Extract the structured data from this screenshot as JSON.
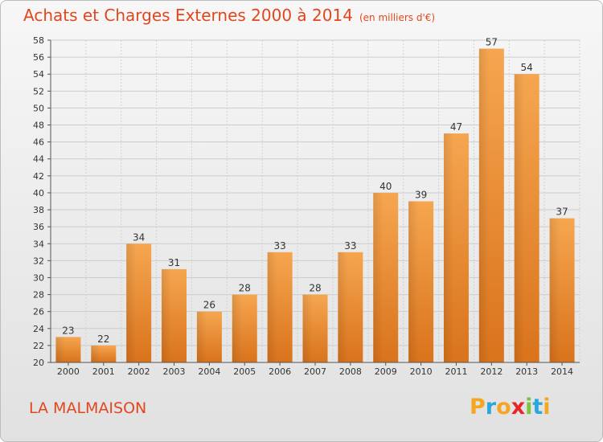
{
  "title": "Achats et Charges Externes 2000 à 2014",
  "unit_note": "(en milliers d'€)",
  "place_name": "LA MALMAISON",
  "logo": {
    "letters": [
      "P",
      "r",
      "o",
      "x",
      "i",
      "t",
      "i"
    ],
    "colors": [
      "#f5a623",
      "#2aa7dd",
      "#f5a623",
      "#e8262a",
      "#7cc243",
      "#2aa7dd",
      "#f5a623"
    ]
  },
  "colors": {
    "bar": "#f29a3f",
    "bar_dark": "#d9731c",
    "title": "#e0471f",
    "grid": "#c8c8c8"
  },
  "chart_data": {
    "type": "bar",
    "categories": [
      "2000",
      "2001",
      "2002",
      "2003",
      "2004",
      "2005",
      "2006",
      "2007",
      "2008",
      "2009",
      "2010",
      "2011",
      "2012",
      "2013",
      "2014"
    ],
    "values": [
      23,
      22,
      34,
      31,
      26,
      28,
      33,
      28,
      33,
      40,
      39,
      47,
      57,
      54,
      37
    ],
    "ylim": [
      20,
      58
    ],
    "yticks": [
      20,
      22,
      24,
      26,
      28,
      30,
      32,
      34,
      36,
      38,
      40,
      42,
      44,
      46,
      48,
      50,
      52,
      54,
      56,
      58
    ],
    "grid": true,
    "data_labels": true
  }
}
